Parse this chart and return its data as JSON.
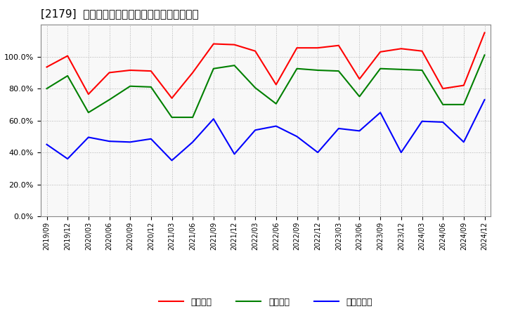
{
  "title": "[2179]  流動比率、当座比率、現預金比率の推移",
  "x_labels": [
    "2019/09",
    "2019/12",
    "2020/03",
    "2020/06",
    "2020/09",
    "2020/12",
    "2021/03",
    "2021/06",
    "2021/09",
    "2021/12",
    "2022/03",
    "2022/06",
    "2022/09",
    "2022/12",
    "2023/03",
    "2023/06",
    "2023/09",
    "2023/12",
    "2024/03",
    "2024/06",
    "2024/09",
    "2024/12"
  ],
  "ryudo": [
    93.5,
    100.5,
    76.5,
    90.0,
    91.5,
    91.0,
    74.0,
    90.0,
    108.0,
    107.5,
    103.5,
    82.5,
    105.5,
    105.5,
    107.0,
    86.0,
    103.0,
    105.0,
    103.5,
    80.0,
    82.0,
    115.0
  ],
  "toza": [
    80.0,
    88.0,
    65.0,
    73.0,
    81.5,
    81.0,
    62.0,
    62.0,
    92.5,
    94.5,
    80.5,
    70.5,
    92.5,
    91.5,
    91.0,
    75.0,
    92.5,
    92.0,
    91.5,
    70.0,
    70.0,
    101.0
  ],
  "genkin": [
    45.0,
    36.0,
    49.5,
    47.0,
    46.5,
    48.5,
    35.0,
    46.5,
    61.0,
    39.0,
    54.0,
    56.5,
    50.0,
    40.0,
    55.0,
    53.5,
    65.0,
    40.0,
    59.5,
    59.0,
    46.5,
    73.0
  ],
  "ryudo_color": "#ff0000",
  "toza_color": "#008000",
  "genkin_color": "#0000ff",
  "bg_color": "#ffffff",
  "grid_color": "#aaaaaa",
  "ylim": [
    0,
    120
  ],
  "yticks": [
    0,
    20,
    40,
    60,
    80,
    100
  ],
  "legend_labels": [
    "流動比率",
    "当座比率",
    "現預金比率"
  ]
}
